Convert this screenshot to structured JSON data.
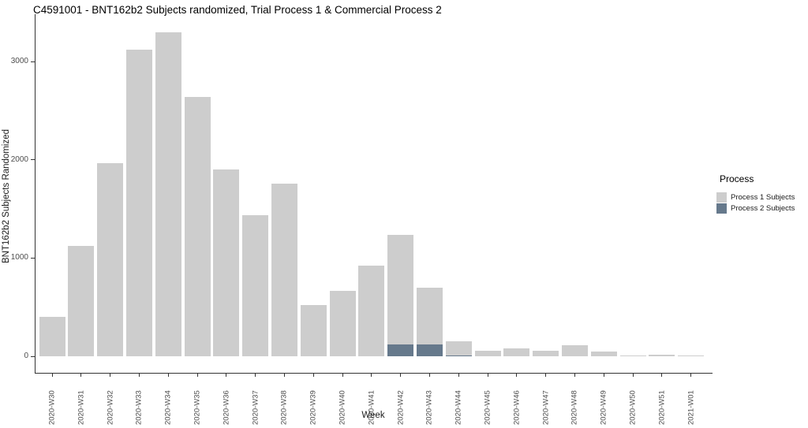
{
  "title": "C4591001 - BNT162b2 Subjects randomized, Trial Process 1 & Commercial Process 2",
  "colors": {
    "process1_fill": "#cdcdcd",
    "process2_fill": "#66798c",
    "axis_line": "#333333",
    "tick_text": "#4d4d4d",
    "background": "#ffffff"
  },
  "legend": {
    "title": "Process",
    "items": [
      {
        "label": "Process 1 Subjects",
        "color": "#cdcdcd"
      },
      {
        "label": "Process 2 Subjects",
        "color": "#66798c"
      }
    ]
  },
  "chart_data": {
    "type": "bar",
    "stacked": true,
    "title": "C4591001 - BNT162b2 Subjects randomized, Trial Process 1 & Commercial Process 2",
    "xlabel": "Week",
    "ylabel": "BNT162b2 Subjects Randomized",
    "ylim": [
      0,
      3485
    ],
    "yticks": [
      0,
      1000,
      2000,
      3000
    ],
    "grid": false,
    "legend_position": "right",
    "categories": [
      "2020-W30",
      "2020-W31",
      "2020-W32",
      "2020-W33",
      "2020-W34",
      "2020-W35",
      "2020-W36",
      "2020-W37",
      "2020-W38",
      "2020-W39",
      "2020-W40",
      "2020-W41",
      "2020-W42",
      "2020-W43",
      "2020-W44",
      "2020-W45",
      "2020-W46",
      "2020-W47",
      "2020-W48",
      "2020-W49",
      "2020-W50",
      "2020-W51",
      "2021-W01"
    ],
    "series": [
      {
        "name": "Process 1 Subjects",
        "color": "#cdcdcd",
        "values": [
          405,
          1120,
          1970,
          3120,
          3300,
          2640,
          1900,
          1440,
          1760,
          520,
          665,
          920,
          1113,
          580,
          147,
          56,
          80,
          56,
          115,
          45,
          5,
          13,
          5
        ]
      },
      {
        "name": "Process 2 Subjects",
        "color": "#66798c",
        "values": [
          0,
          0,
          0,
          0,
          0,
          0,
          0,
          0,
          0,
          0,
          0,
          0,
          122,
          120,
          8,
          0,
          0,
          0,
          0,
          0,
          0,
          0,
          0
        ]
      }
    ]
  }
}
